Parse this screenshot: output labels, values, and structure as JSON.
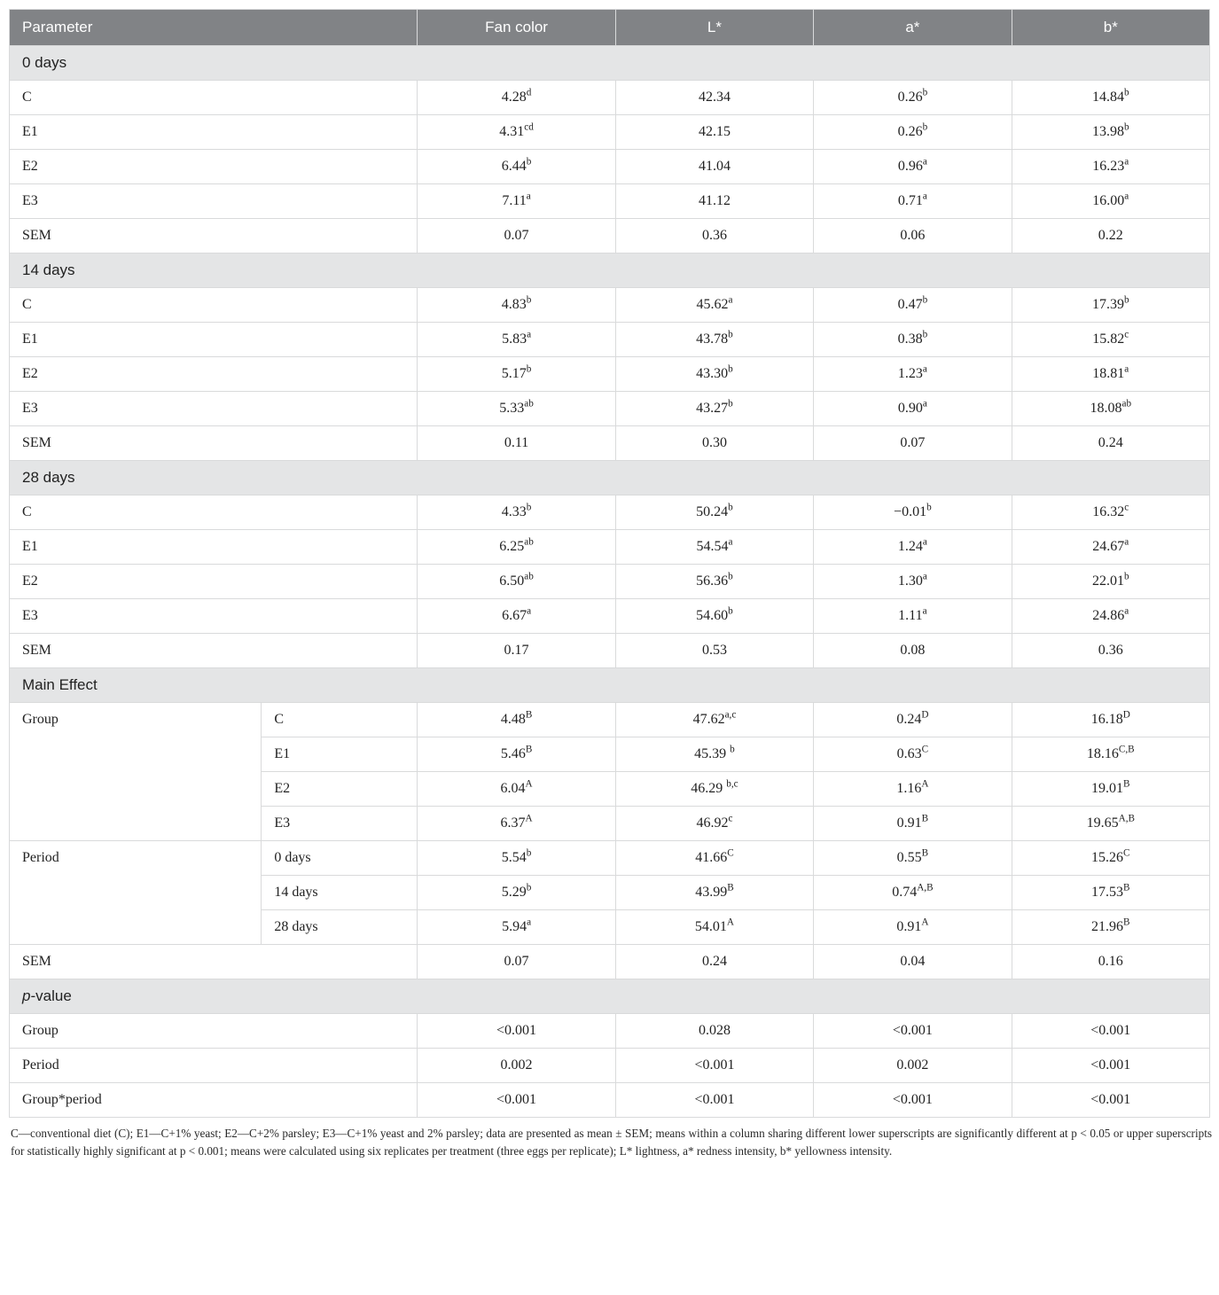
{
  "columns": [
    "Parameter",
    "Fan color",
    "L*",
    "a*",
    "b*"
  ],
  "col_widths": [
    "21%",
    "13%",
    "16.5%",
    "16.5%",
    "16.5%",
    "16.5%"
  ],
  "sections": [
    {
      "title": "0 days",
      "rows": [
        {
          "label": "C",
          "span2": true,
          "cells": [
            {
              "v": "4.28",
              "s": "d"
            },
            {
              "v": "42.34"
            },
            {
              "v": "0.26",
              "s": "b"
            },
            {
              "v": "14.84",
              "s": "b"
            }
          ]
        },
        {
          "label": "E1",
          "span2": true,
          "cells": [
            {
              "v": "4.31",
              "s": "cd"
            },
            {
              "v": "42.15"
            },
            {
              "v": "0.26",
              "s": "b"
            },
            {
              "v": "13.98",
              "s": "b"
            }
          ]
        },
        {
          "label": "E2",
          "span2": true,
          "cells": [
            {
              "v": "6.44",
              "s": "b"
            },
            {
              "v": "41.04"
            },
            {
              "v": "0.96",
              "s": "a"
            },
            {
              "v": "16.23",
              "s": "a"
            }
          ]
        },
        {
          "label": "E3",
          "span2": true,
          "cells": [
            {
              "v": "7.11",
              "s": "a"
            },
            {
              "v": "41.12"
            },
            {
              "v": "0.71",
              "s": "a"
            },
            {
              "v": "16.00",
              "s": "a"
            }
          ]
        },
        {
          "label": "SEM",
          "span2": true,
          "cells": [
            {
              "v": "0.07"
            },
            {
              "v": "0.36"
            },
            {
              "v": "0.06"
            },
            {
              "v": "0.22"
            }
          ]
        }
      ]
    },
    {
      "title": "14 days",
      "rows": [
        {
          "label": "C",
          "span2": true,
          "cells": [
            {
              "v": "4.83",
              "s": "b"
            },
            {
              "v": "45.62",
              "s": "a"
            },
            {
              "v": "0.47",
              "s": "b"
            },
            {
              "v": "17.39",
              "s": "b"
            }
          ]
        },
        {
          "label": "E1",
          "span2": true,
          "cells": [
            {
              "v": "5.83",
              "s": "a"
            },
            {
              "v": "43.78",
              "s": "b"
            },
            {
              "v": "0.38",
              "s": "b"
            },
            {
              "v": "15.82",
              "s": "c"
            }
          ]
        },
        {
          "label": "E2",
          "span2": true,
          "cells": [
            {
              "v": "5.17",
              "s": "b"
            },
            {
              "v": "43.30",
              "s": "b"
            },
            {
              "v": "1.23",
              "s": "a"
            },
            {
              "v": "18.81",
              "s": "a"
            }
          ]
        },
        {
          "label": "E3",
          "span2": true,
          "cells": [
            {
              "v": "5.33",
              "s": "ab"
            },
            {
              "v": "43.27",
              "s": "b"
            },
            {
              "v": "0.90",
              "s": "a"
            },
            {
              "v": "18.08",
              "s": "ab"
            }
          ]
        },
        {
          "label": "SEM",
          "span2": true,
          "cells": [
            {
              "v": "0.11"
            },
            {
              "v": "0.30"
            },
            {
              "v": "0.07"
            },
            {
              "v": "0.24"
            }
          ]
        }
      ]
    },
    {
      "title": "28 days",
      "rows": [
        {
          "label": "C",
          "span2": true,
          "cells": [
            {
              "v": "4.33",
              "s": "b"
            },
            {
              "v": "50.24",
              "s": "b"
            },
            {
              "v": "−0.01",
              "s": "b"
            },
            {
              "v": "16.32",
              "s": "c"
            }
          ]
        },
        {
          "label": "E1",
          "span2": true,
          "cells": [
            {
              "v": "6.25",
              "s": "ab"
            },
            {
              "v": "54.54",
              "s": "a"
            },
            {
              "v": "1.24",
              "s": "a"
            },
            {
              "v": "24.67",
              "s": "a"
            }
          ]
        },
        {
          "label": "E2",
          "span2": true,
          "cells": [
            {
              "v": "6.50",
              "s": "ab"
            },
            {
              "v": "56.36",
              "s": "b"
            },
            {
              "v": "1.30",
              "s": "a"
            },
            {
              "v": "22.01",
              "s": "b"
            }
          ]
        },
        {
          "label": "E3",
          "span2": true,
          "cells": [
            {
              "v": "6.67",
              "s": "a"
            },
            {
              "v": "54.60",
              "s": "b"
            },
            {
              "v": "1.11",
              "s": "a"
            },
            {
              "v": "24.86",
              "s": "a"
            }
          ]
        },
        {
          "label": "SEM",
          "span2": true,
          "cells": [
            {
              "v": "0.17"
            },
            {
              "v": "0.53"
            },
            {
              "v": "0.08"
            },
            {
              "v": "0.36"
            }
          ]
        }
      ]
    },
    {
      "title": "Main Effect",
      "rows": [
        {
          "group": "Group",
          "groupspan": 4,
          "label": "C",
          "cells": [
            {
              "v": "4.48",
              "s": "B"
            },
            {
              "v": "47.62",
              "s": "a,c"
            },
            {
              "v": "0.24",
              "s": "D"
            },
            {
              "v": "16.18",
              "s": "D"
            }
          ]
        },
        {
          "label": "E1",
          "cells": [
            {
              "v": "5.46",
              "s": "B"
            },
            {
              "v": "45.39 ",
              "s": "b"
            },
            {
              "v": "0.63",
              "s": "C"
            },
            {
              "v": "18.16",
              "s": "C,B"
            }
          ]
        },
        {
          "label": "E2",
          "cells": [
            {
              "v": "6.04",
              "s": "A"
            },
            {
              "v": "46.29 ",
              "s": "b,c"
            },
            {
              "v": "1.16",
              "s": "A"
            },
            {
              "v": "19.01",
              "s": "B"
            }
          ]
        },
        {
          "label": "E3",
          "cells": [
            {
              "v": "6.37",
              "s": "A"
            },
            {
              "v": "46.92",
              "s": "c"
            },
            {
              "v": "0.91",
              "s": "B"
            },
            {
              "v": "19.65",
              "s": "A,B"
            }
          ]
        },
        {
          "group": "Period",
          "groupspan": 3,
          "label": "0 days",
          "cells": [
            {
              "v": "5.54",
              "s": "b"
            },
            {
              "v": "41.66",
              "s": "C"
            },
            {
              "v": "0.55",
              "s": "B"
            },
            {
              "v": "15.26",
              "s": "C"
            }
          ]
        },
        {
          "label": "14 days",
          "cells": [
            {
              "v": "5.29",
              "s": "b"
            },
            {
              "v": "43.99",
              "s": "B"
            },
            {
              "v": "0.74",
              "s": "A,B"
            },
            {
              "v": "17.53",
              "s": "B"
            }
          ]
        },
        {
          "label": "28 days",
          "cells": [
            {
              "v": "5.94",
              "s": "a"
            },
            {
              "v": "54.01",
              "s": "A"
            },
            {
              "v": "0.91",
              "s": "A"
            },
            {
              "v": "21.96",
              "s": "B"
            }
          ]
        },
        {
          "label": "SEM",
          "span2": true,
          "cells": [
            {
              "v": "0.07"
            },
            {
              "v": "0.24"
            },
            {
              "v": "0.04"
            },
            {
              "v": "0.16"
            }
          ]
        }
      ]
    },
    {
      "title": "p-value",
      "title_italic_prefix": "p",
      "title_rest": "-value",
      "rows": [
        {
          "label": "Group",
          "span2": true,
          "cells": [
            {
              "v": "<0.001"
            },
            {
              "v": "0.028"
            },
            {
              "v": "<0.001"
            },
            {
              "v": "<0.001"
            }
          ]
        },
        {
          "label": "Period",
          "span2": true,
          "cells": [
            {
              "v": "0.002"
            },
            {
              "v": "<0.001"
            },
            {
              "v": "0.002"
            },
            {
              "v": "<0.001"
            }
          ]
        },
        {
          "label": "Group*period",
          "span2": true,
          "cells": [
            {
              "v": "<0.001"
            },
            {
              "v": "<0.001"
            },
            {
              "v": "<0.001"
            },
            {
              "v": "<0.001"
            }
          ]
        }
      ]
    }
  ],
  "footnote": "C—conventional diet (C); E1—C+1% yeast; E2—C+2% parsley; E3—C+1% yeast and 2% parsley; data are presented as mean ± SEM; means within a column sharing different lower superscripts are significantly different at p < 0.05 or upper superscripts for statistically highly significant at p < 0.001; means were calculated using six replicates per treatment (three eggs per replicate); L* lightness, a* redness intensity, b* yellowness intensity."
}
